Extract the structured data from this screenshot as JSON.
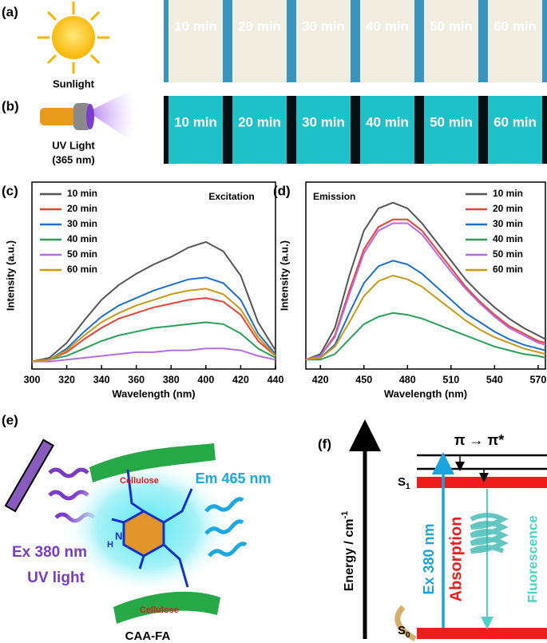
{
  "panel_labels": [
    "(a)",
    "(b)",
    "(e)",
    "(f)"
  ],
  "photo_a": {
    "label": "Sunlight",
    "tiles": [
      "10 min",
      "20 min",
      "30 min",
      "40 min",
      "50 min",
      "60 min"
    ]
  },
  "photo_b": {
    "label_lines": [
      "UV Light",
      "(365 nm)"
    ],
    "tiles": [
      "10 min",
      "20 min",
      "30 min",
      "40 min",
      "50 min",
      "60 min"
    ]
  },
  "chart_data": [
    {
      "type": "line",
      "label": "(c)",
      "annotation": "Excitation",
      "x_label": "Wavelength (nm)",
      "y_label": "Intensity (a.u.)",
      "x": [
        300,
        310,
        320,
        330,
        340,
        350,
        360,
        370,
        380,
        390,
        400,
        410,
        420,
        430,
        440
      ],
      "xlim": [
        300,
        440
      ],
      "xticks": [
        300,
        320,
        340,
        360,
        380,
        400,
        420,
        440
      ],
      "ylim": [
        0,
        100
      ],
      "series": [
        {
          "name": "10 min",
          "color": "#555555",
          "values": [
            4,
            6,
            14,
            26,
            37,
            45,
            51,
            56,
            60,
            65,
            68,
            63,
            50,
            25,
            10
          ]
        },
        {
          "name": "20 min",
          "color": "#e8413c",
          "values": [
            4,
            5,
            9,
            16,
            22,
            27,
            30,
            33,
            35,
            37,
            38,
            36,
            29,
            15,
            7
          ]
        },
        {
          "name": "30 min",
          "color": "#1f6fd1",
          "values": [
            4,
            5,
            11,
            20,
            28,
            34,
            38,
            42,
            45,
            48,
            49,
            46,
            37,
            19,
            8
          ]
        },
        {
          "name": "40 min",
          "color": "#2ca05a",
          "values": [
            4,
            5,
            7,
            11,
            15,
            18,
            20,
            22,
            23,
            24,
            25,
            24,
            19,
            11,
            6
          ]
        },
        {
          "name": "50 min",
          "color": "#b46ee0",
          "values": [
            4,
            4,
            5,
            6,
            7,
            8,
            9,
            9,
            10,
            10,
            11,
            11,
            10,
            7,
            5
          ]
        },
        {
          "name": "60 min",
          "color": "#c79a16",
          "values": [
            4,
            5,
            10,
            18,
            25,
            30,
            34,
            37,
            40,
            42,
            43,
            40,
            32,
            17,
            7
          ]
        }
      ]
    },
    {
      "type": "line",
      "label": "(d)",
      "annotation": "Emission",
      "x_label": "Wavelength (nm)",
      "y_label": "Intensity (a.u.)",
      "x": [
        410,
        420,
        430,
        440,
        450,
        460,
        470,
        480,
        490,
        500,
        510,
        520,
        530,
        540,
        550,
        560,
        570,
        575
      ],
      "xlim": [
        410,
        575
      ],
      "xticks": [
        420,
        450,
        480,
        510,
        540,
        570
      ],
      "ylim": [
        0,
        100
      ],
      "series": [
        {
          "name": "10 min",
          "color": "#555555",
          "values": [
            5,
            8,
            22,
            50,
            74,
            86,
            89,
            86,
            78,
            68,
            58,
            48,
            40,
            33,
            27,
            22,
            18,
            16
          ]
        },
        {
          "name": "20 min",
          "color": "#e8413c",
          "values": [
            5,
            7,
            18,
            42,
            64,
            76,
            80,
            80,
            74,
            64,
            54,
            44,
            36,
            29,
            23,
            19,
            15,
            14
          ]
        },
        {
          "name": "30 min",
          "color": "#1f6fd1",
          "values": [
            5,
            6,
            13,
            30,
            46,
            55,
            58,
            56,
            51,
            44,
            37,
            30,
            25,
            20,
            16,
            13,
            11,
            10
          ]
        },
        {
          "name": "40 min",
          "color": "#2ca05a",
          "values": [
            5,
            5,
            8,
            16,
            24,
            28,
            30,
            29,
            27,
            24,
            21,
            18,
            15,
            12,
            10,
            8,
            7,
            6
          ]
        },
        {
          "name": "50 min",
          "color": "#b46ee0",
          "values": [
            5,
            7,
            17,
            40,
            62,
            74,
            78,
            78,
            72,
            62,
            52,
            43,
            35,
            28,
            22,
            18,
            14,
            13
          ]
        },
        {
          "name": "60 min",
          "color": "#c79a16",
          "values": [
            5,
            6,
            12,
            25,
            39,
            47,
            50,
            48,
            44,
            38,
            32,
            26,
            21,
            17,
            14,
            11,
            9,
            8
          ]
        }
      ]
    }
  ],
  "diagram_e": {
    "cellulose_top": "Cellulose",
    "cellulose_bottom": "Cellulose",
    "em": "Em 465 nm",
    "ex": "Ex 380 nm",
    "uv": "UV light",
    "name": "CAA-FA",
    "n": "N",
    "h": "H"
  },
  "diagram_f": {
    "y_axis": "Energy / cm",
    "y_axis_sup": "-1",
    "transition": "π → π*",
    "s1": "S",
    "s1_sub": "1",
    "s0": "S",
    "s0_sub": "0",
    "ex": "Ex 380 nm",
    "absorption": "Absorption",
    "fluorescence": "Fluorescence"
  }
}
